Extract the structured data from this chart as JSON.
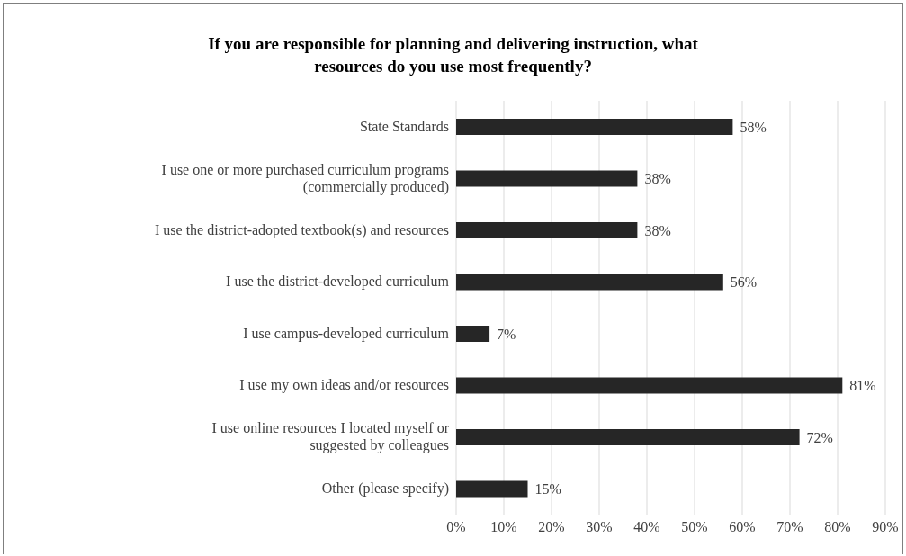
{
  "chart_data": {
    "type": "bar",
    "orientation": "horizontal",
    "title": "If you are responsible for planning and delivering instruction, what\nresources do you use most frequently?",
    "categories": [
      "State Standards",
      "I use one or more purchased curriculum programs\n(commercially produced)",
      "I use the district-adopted textbook(s) and resources",
      "I use the district-developed curriculum",
      "I use campus-developed curriculum",
      "I use my own ideas and/or resources",
      "I use online resources I located myself or\nsuggested by colleagues",
      "Other (please specify)"
    ],
    "values": [
      58,
      38,
      38,
      56,
      7,
      81,
      72,
      15
    ],
    "value_labels": [
      "58%",
      "38%",
      "38%",
      "56%",
      "7%",
      "81%",
      "72%",
      "15%"
    ],
    "color": "#262626",
    "xlim": [
      0,
      90
    ],
    "xticks": [
      {
        "value": 0,
        "label": "0%"
      },
      {
        "value": 10,
        "label": "10%"
      },
      {
        "value": 20,
        "label": "20%"
      },
      {
        "value": 30,
        "label": "30%"
      },
      {
        "value": 40,
        "label": "40%"
      },
      {
        "value": 50,
        "label": "50%"
      },
      {
        "value": 60,
        "label": "60%"
      },
      {
        "value": 70,
        "label": "70%"
      },
      {
        "value": 80,
        "label": "80%"
      },
      {
        "value": 90,
        "label": "90%"
      }
    ],
    "grid": "x",
    "legend": false
  }
}
